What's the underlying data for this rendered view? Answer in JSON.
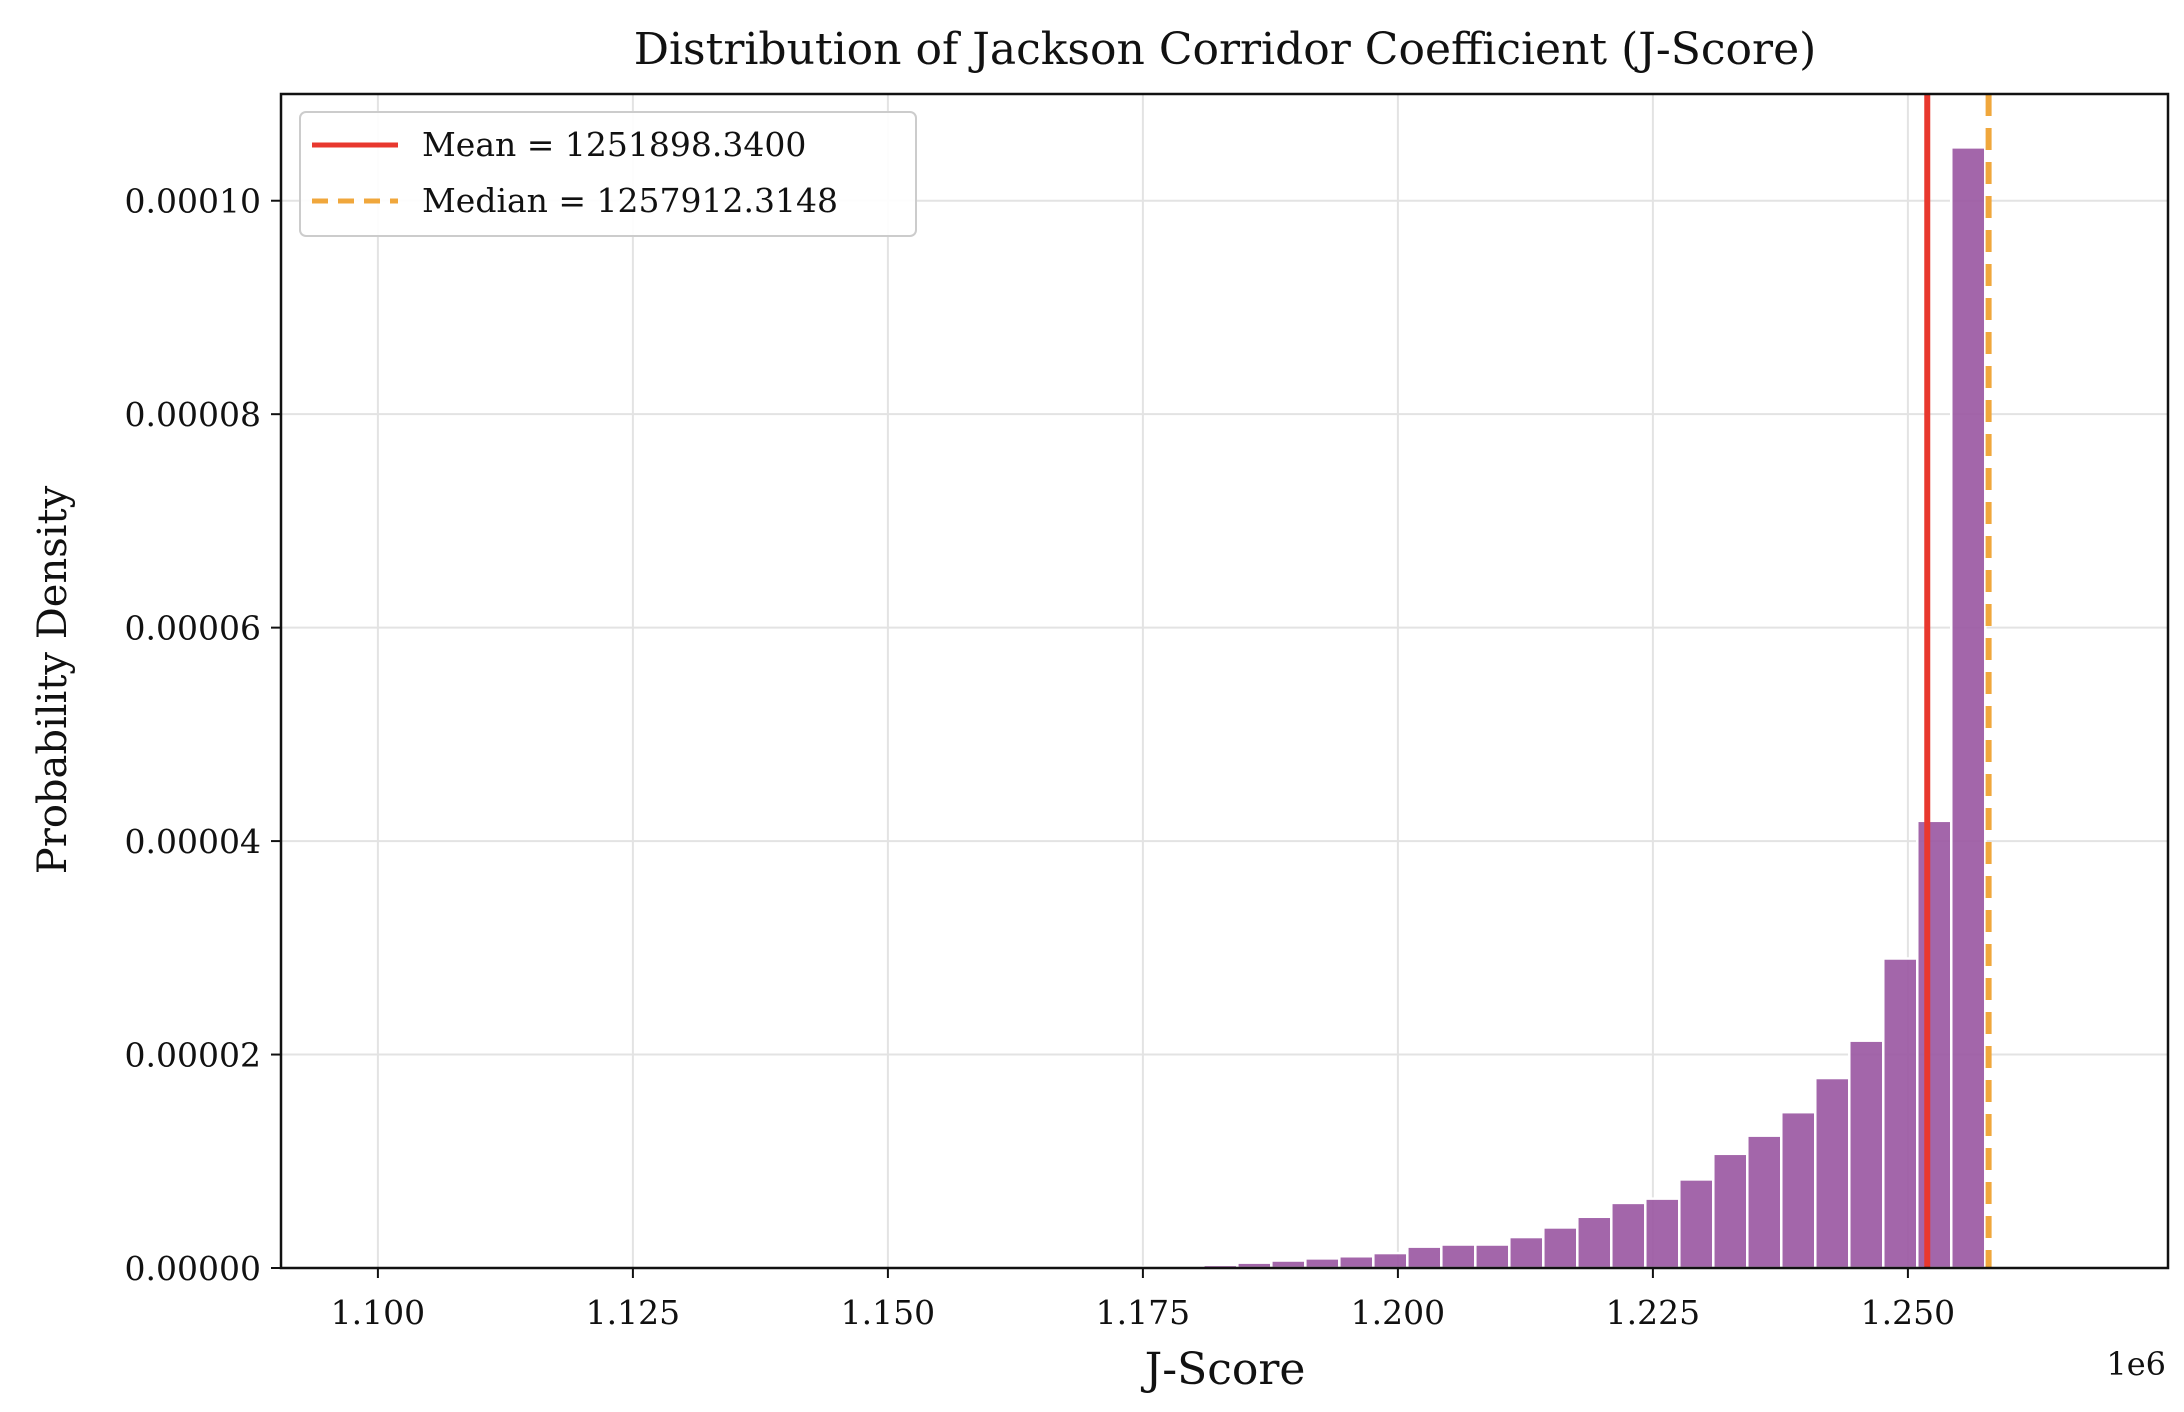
{
  "chart_data": {
    "type": "histogram",
    "title": "Distribution of Jackson Corridor Coefficient (J-Score)",
    "xlabel": "J-Score",
    "ylabel": "Probability Density",
    "x_offset_label": "1e6",
    "xlim": [
      1.0905,
      1.2755
    ],
    "ylim": [
      0,
      0.00011
    ],
    "grid": true,
    "legend_position": "top-left",
    "x_ticks": [
      {
        "value": 1.1,
        "label": "1.100"
      },
      {
        "value": 1.125,
        "label": "1.125"
      },
      {
        "value": 1.15,
        "label": "1.150"
      },
      {
        "value": 1.175,
        "label": "1.175"
      },
      {
        "value": 1.2,
        "label": "1.200"
      },
      {
        "value": 1.225,
        "label": "1.225"
      },
      {
        "value": 1.25,
        "label": "1.250"
      }
    ],
    "y_ticks": [
      {
        "value": 0,
        "label": "0.00000"
      },
      {
        "value": 2e-05,
        "label": "0.00002"
      },
      {
        "value": 4e-05,
        "label": "0.00004"
      },
      {
        "value": 6e-05,
        "label": "0.00006"
      },
      {
        "value": 8e-05,
        "label": "0.00008"
      },
      {
        "value": 0.0001,
        "label": "0.00010"
      }
    ],
    "bins": {
      "start": 1.0976,
      "width": 0.003333,
      "values": [
        0,
        0,
        0,
        0,
        0,
        0,
        0,
        0,
        0,
        0,
        0,
        0,
        0,
        0,
        0,
        0,
        0,
        0,
        0,
        0,
        0,
        0,
        1e-07,
        1e-07,
        2e-07,
        3e-07,
        5e-07,
        7e-07,
        9e-07,
        1.1e-06,
        1.4e-06,
        2e-06,
        2.2e-06,
        2.2e-06,
        2.9e-06,
        3.8e-06,
        4.8e-06,
        6.1e-06,
        6.5e-06,
        8.3e-06,
        1.07e-05,
        1.24e-05,
        1.46e-05,
        1.78e-05,
        2.13e-05,
        2.9e-05,
        4.19e-05,
        0.000105
      ]
    },
    "reference_lines": [
      {
        "name": "mean",
        "label": "Mean = 1251898.3400",
        "value": 1.25189834,
        "color": "#e8382e",
        "style": "solid"
      },
      {
        "name": "median",
        "label": "Median = 1257912.3148",
        "value": 1.2579123148,
        "color": "#f0a73c",
        "style": "dashed"
      }
    ],
    "bar_color": "#9b59a3"
  }
}
